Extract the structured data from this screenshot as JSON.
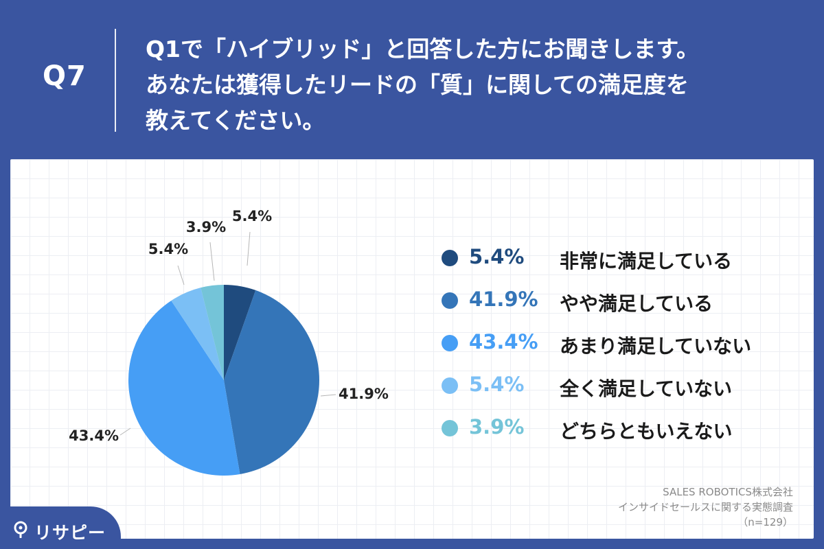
{
  "header": {
    "qnum": "Q7",
    "question_lines": [
      "Q1で「ハイブリッド」と回答した方にお聞きします。",
      "あなたは獲得したリードの「質」に関しての満足度を",
      "教えてください。"
    ]
  },
  "chart_data": {
    "type": "pie",
    "slices": [
      {
        "label": "非常に満足している",
        "value": 5.4,
        "value_label": "5.4%",
        "color": "#1f4b7e"
      },
      {
        "label": "やや満足している",
        "value": 41.9,
        "value_label": "41.9%",
        "color": "#3475b8"
      },
      {
        "label": "あまり満足していない",
        "value": 43.4,
        "value_label": "43.4%",
        "color": "#469ef5"
      },
      {
        "label": "全く満足していない",
        "value": 5.4,
        "value_label": "5.4%",
        "color": "#7bbff5"
      },
      {
        "label": "どちらともいえない",
        "value": 3.9,
        "value_label": "3.9%",
        "color": "#74c4d8"
      }
    ],
    "start": "12 o'clock",
    "direction": "clockwise",
    "legend_position": "right"
  },
  "source": {
    "line1": "SALES ROBOTICS株式会社",
    "line2": "インサイドセールスに関する実態調査",
    "line3": "（n=129）"
  },
  "logo": {
    "text": "リサピー",
    "icon": "pin-icon"
  }
}
